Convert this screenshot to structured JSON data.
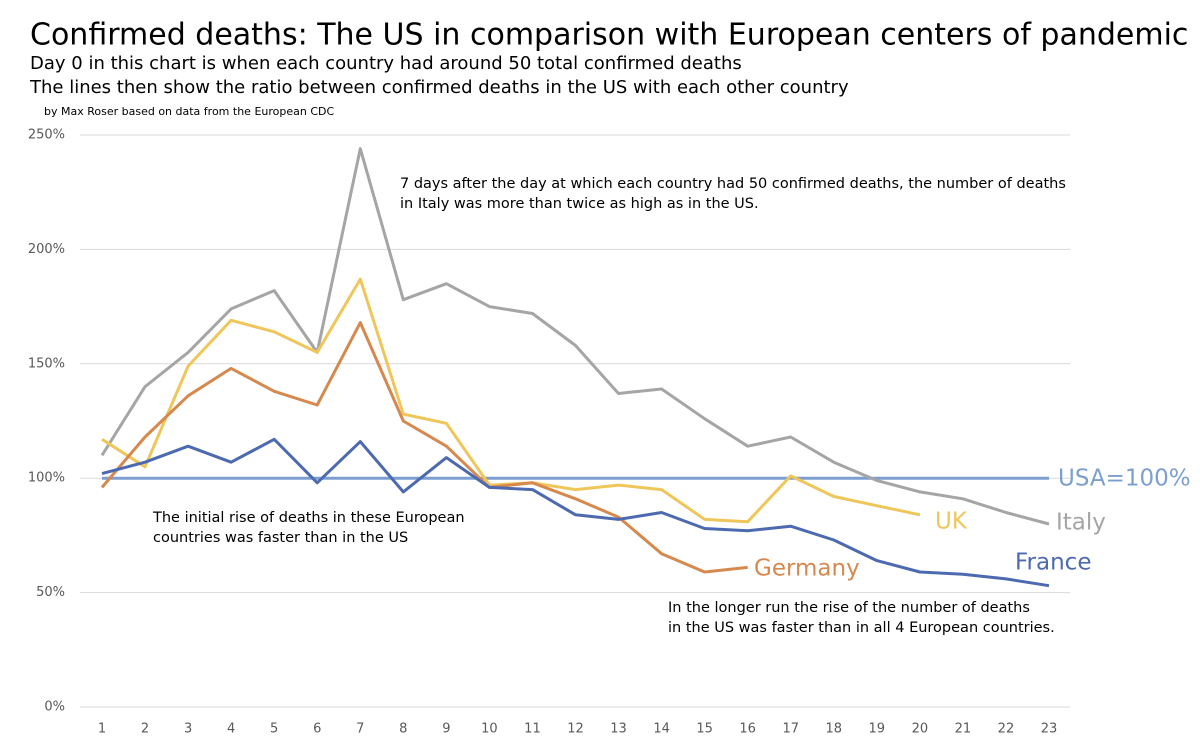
{
  "chart_data": {
    "type": "line",
    "title": "Confirmed deaths: The US  in comparison with European centers of pandemic",
    "subtitle": [
      "Day 0 in this chart is when each country had around 50 total confirmed deaths",
      "The lines then show the ratio between confirmed deaths in the US with each other country"
    ],
    "source": "by Max Roser based on data from the European CDC",
    "categories": [
      1,
      2,
      3,
      4,
      5,
      6,
      7,
      8,
      9,
      10,
      11,
      12,
      13,
      14,
      15,
      16,
      17,
      18,
      19,
      20,
      21,
      22,
      23
    ],
    "ylim": [
      0,
      250
    ],
    "yticks": [
      {
        "value": 0,
        "label": "0%"
      },
      {
        "value": 50,
        "label": "50%"
      },
      {
        "value": 100,
        "label": "100%"
      },
      {
        "value": 150,
        "label": "150%"
      },
      {
        "value": 200,
        "label": "200%"
      },
      {
        "value": 250,
        "label": "250%"
      }
    ],
    "grid": true,
    "series": [
      {
        "name": "USA=100%",
        "color": "#7c9fd0",
        "values": [
          100,
          100,
          100,
          100,
          100,
          100,
          100,
          100,
          100,
          100,
          100,
          100,
          100,
          100,
          100,
          100,
          100,
          100,
          100,
          100,
          100,
          100,
          100
        ]
      },
      {
        "name": "Italy",
        "color": "#a5a5a5",
        "values": [
          110,
          140,
          155,
          174,
          182,
          155,
          244,
          178,
          185,
          175,
          172,
          158,
          137,
          139,
          126,
          114,
          118,
          107,
          99,
          94,
          91,
          85,
          80
        ]
      },
      {
        "name": "UK",
        "color": "#efc65a",
        "values": [
          117,
          105,
          149,
          169,
          164,
          155,
          187,
          128,
          124,
          97,
          98,
          95,
          97,
          95,
          82,
          81,
          101,
          92,
          88,
          84,
          null,
          null,
          null
        ]
      },
      {
        "name": "Germany",
        "color": "#d6894e",
        "values": [
          96,
          118,
          136,
          148,
          138,
          132,
          168,
          125,
          114,
          96,
          98,
          91,
          83,
          67,
          59,
          61,
          null,
          null,
          null,
          null,
          null,
          null,
          null
        ]
      },
      {
        "name": "France",
        "color": "#4d6ab0",
        "values": [
          102,
          107,
          114,
          107,
          117,
          98,
          116,
          94,
          109,
          96,
          95,
          84,
          82,
          85,
          78,
          77,
          79,
          73,
          64,
          59,
          58,
          56,
          53
        ]
      }
    ],
    "annotations": [
      [
        "7 days after the day at which each country had 50 confirmed deaths, the number of deaths",
        "in Italy was more than twice as high as in the US."
      ],
      [
        "The initial rise of deaths in these European",
        "countries was faster than in the US"
      ],
      [
        "In the longer run the rise of the number of deaths",
        "in the US was faster than in all 4 European countries."
      ]
    ]
  }
}
